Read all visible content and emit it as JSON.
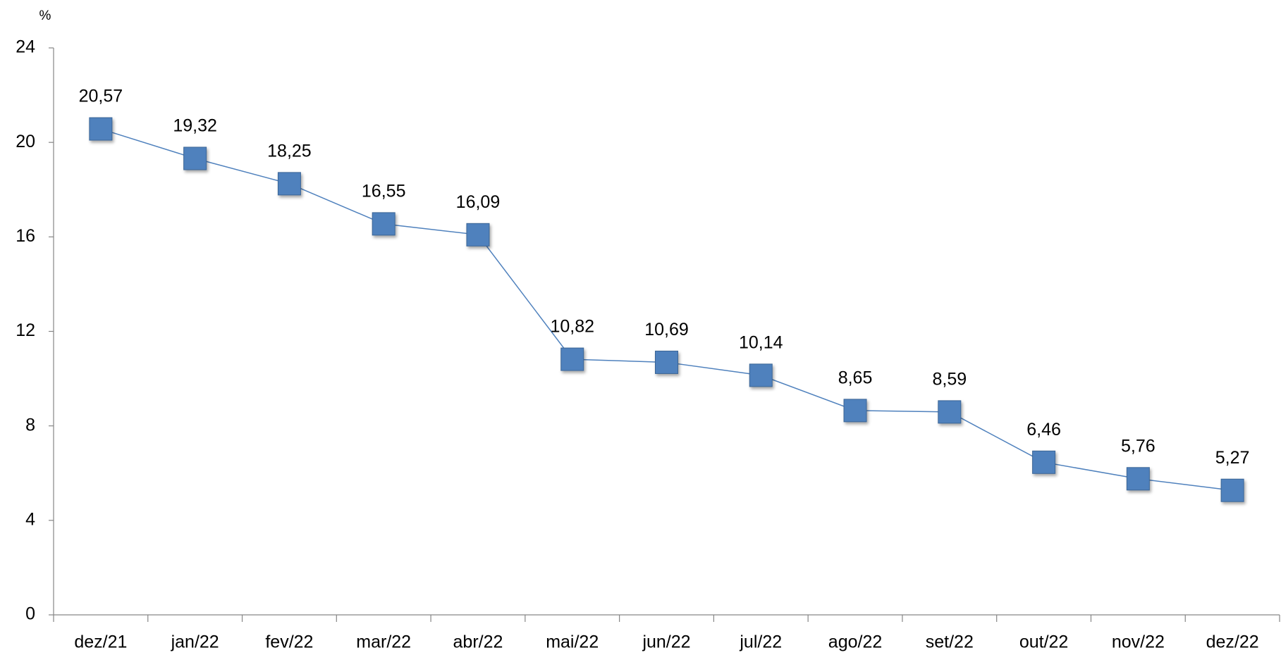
{
  "chart_data": {
    "type": "line",
    "ylabel": "%",
    "categories": [
      "dez/21",
      "jan/22",
      "fev/22",
      "mar/22",
      "abr/22",
      "mai/22",
      "jun/22",
      "jul/22",
      "ago/22",
      "set/22",
      "out/22",
      "nov/22",
      "dez/22"
    ],
    "values": [
      20.57,
      19.32,
      18.25,
      16.55,
      16.09,
      10.82,
      10.69,
      10.14,
      8.65,
      8.59,
      6.46,
      5.76,
      5.27
    ],
    "value_labels": [
      "20,57",
      "19,32",
      "18,25",
      "16,55",
      "16,09",
      "10,82",
      "10,69",
      "10,14",
      "8,65",
      "8,59",
      "6,46",
      "5,76",
      "5,27"
    ],
    "color": "#4f81bd",
    "ylim": [
      0,
      24
    ],
    "yticks": [
      0,
      4,
      8,
      12,
      16,
      20,
      24
    ],
    "grid": false
  }
}
